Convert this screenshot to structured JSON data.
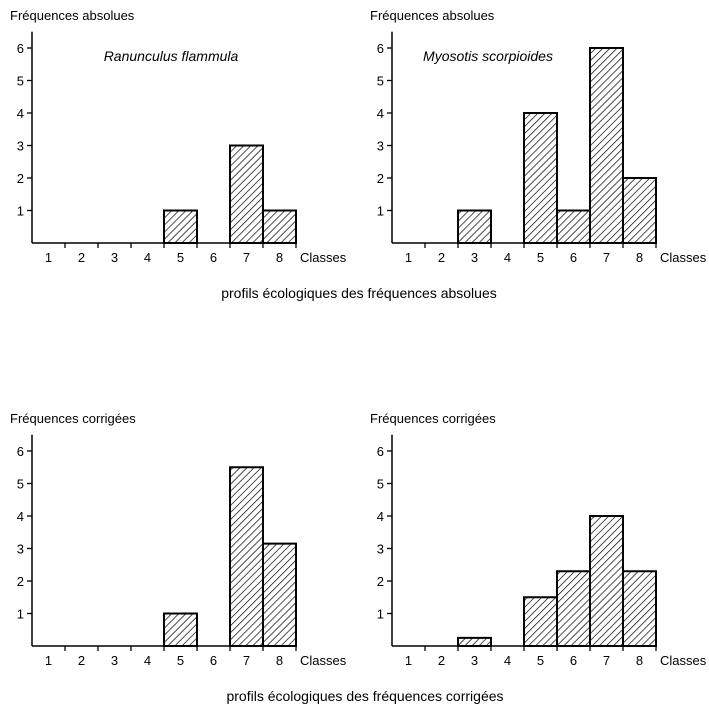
{
  "captions": {
    "absolute": "profils écologiques des fréquences absolues",
    "corrected": "profils écologiques des fréquences corrigées"
  },
  "chart_data": [
    {
      "type": "bar",
      "ylabel": "Fréquences absolues",
      "xlabel": "Classes",
      "annotation": "Ranunculus flammula",
      "categories": [
        "1",
        "2",
        "3",
        "4",
        "5",
        "6",
        "7",
        "8"
      ],
      "values": [
        0,
        0,
        0,
        0,
        1,
        0,
        3,
        1
      ],
      "yticks": [
        1,
        2,
        3,
        4,
        5,
        6
      ],
      "ylim": [
        0,
        6.5
      ],
      "grid": false,
      "fill": "hatched"
    },
    {
      "type": "bar",
      "ylabel": "Fréquences absolues",
      "xlabel": "Classes",
      "annotation": "Myosotis scorpioides",
      "categories": [
        "1",
        "2",
        "3",
        "4",
        "5",
        "6",
        "7",
        "8"
      ],
      "values": [
        0,
        0,
        1,
        0,
        4,
        1,
        6,
        2
      ],
      "yticks": [
        1,
        2,
        3,
        4,
        5,
        6
      ],
      "ylim": [
        0,
        6.5
      ],
      "grid": false,
      "fill": "hatched"
    },
    {
      "type": "bar",
      "ylabel": "Fréquences corrigées",
      "xlabel": "Classes",
      "annotation": "",
      "categories": [
        "1",
        "2",
        "3",
        "4",
        "5",
        "6",
        "7",
        "8"
      ],
      "values": [
        0,
        0,
        0,
        0,
        1.0,
        0,
        5.5,
        3.15
      ],
      "yticks": [
        1,
        2,
        3,
        4,
        5,
        6
      ],
      "ylim": [
        0,
        6.5
      ],
      "grid": false,
      "fill": "hatched"
    },
    {
      "type": "bar",
      "ylabel": "Fréquences corrigées",
      "xlabel": "Classes",
      "annotation": "",
      "categories": [
        "1",
        "2",
        "3",
        "4",
        "5",
        "6",
        "7",
        "8"
      ],
      "values": [
        0,
        0,
        0.25,
        0,
        1.5,
        2.3,
        4.0,
        2.3
      ],
      "yticks": [
        1,
        2,
        3,
        4,
        5,
        6
      ],
      "ylim": [
        0,
        6.5
      ],
      "grid": false,
      "fill": "hatched"
    }
  ]
}
